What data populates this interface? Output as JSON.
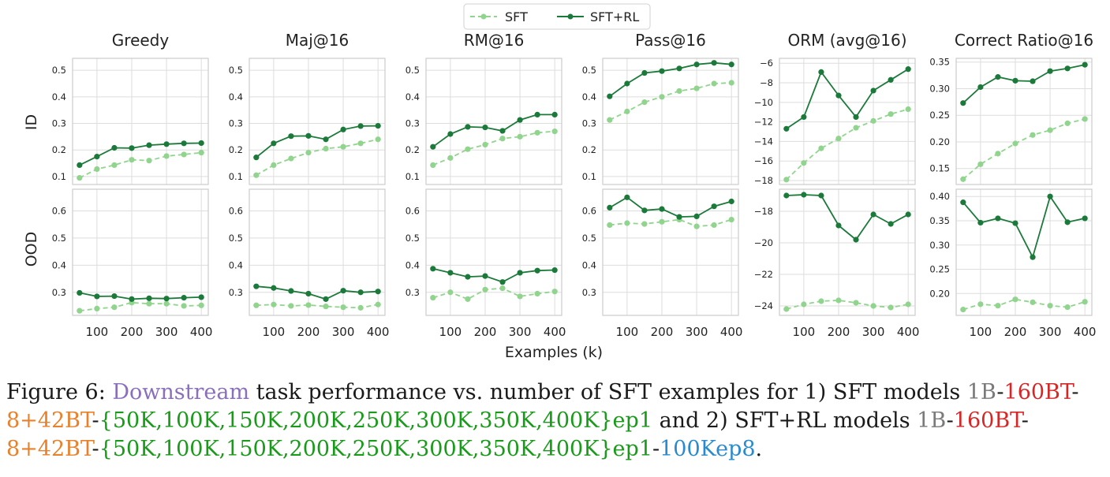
{
  "legend": {
    "sft": "SFT",
    "sftrl": "SFT+RL"
  },
  "xlabel": "Examples (k)",
  "row_labels": [
    "ID",
    "OOD"
  ],
  "colors": {
    "sft": "#90d48e",
    "sftrl": "#1b7a3a"
  },
  "chart_data": [
    {
      "type": "line",
      "title": "Greedy",
      "row": "ID",
      "x": [
        50,
        100,
        150,
        200,
        250,
        300,
        350,
        400
      ],
      "xticks": [
        100,
        200,
        300,
        400
      ],
      "xlim": [
        30,
        420
      ],
      "ylim": [
        0.07,
        0.545
      ],
      "yticks": [
        0.1,
        0.2,
        0.3,
        0.4,
        0.5
      ],
      "ytick_labels": [
        "0.1",
        "0.2",
        "0.3",
        "0.4",
        "0.5"
      ],
      "grid": true,
      "series": [
        {
          "name": "SFT",
          "values": [
            0.095,
            0.128,
            0.143,
            0.163,
            0.16,
            0.177,
            0.183,
            0.19
          ]
        },
        {
          "name": "SFT+RL",
          "values": [
            0.143,
            0.175,
            0.208,
            0.207,
            0.218,
            0.222,
            0.225,
            0.226
          ]
        }
      ]
    },
    {
      "type": "line",
      "title": "Maj@16",
      "row": "ID",
      "x": [
        50,
        100,
        150,
        200,
        250,
        300,
        350,
        400
      ],
      "xticks": [
        100,
        200,
        300,
        400
      ],
      "xlim": [
        30,
        420
      ],
      "ylim": [
        0.07,
        0.545
      ],
      "yticks": [
        0.1,
        0.2,
        0.3,
        0.4,
        0.5
      ],
      "ytick_labels": [
        "0.1",
        "0.2",
        "0.3",
        "0.4",
        "0.5"
      ],
      "grid": true,
      "series": [
        {
          "name": "SFT",
          "values": [
            0.105,
            0.143,
            0.168,
            0.19,
            0.205,
            0.212,
            0.225,
            0.24
          ]
        },
        {
          "name": "SFT+RL",
          "values": [
            0.172,
            0.225,
            0.252,
            0.253,
            0.24,
            0.277,
            0.29,
            0.291
          ]
        }
      ]
    },
    {
      "type": "line",
      "title": "RM@16",
      "row": "ID",
      "x": [
        50,
        100,
        150,
        200,
        250,
        300,
        350,
        400
      ],
      "xticks": [
        100,
        200,
        300,
        400
      ],
      "xlim": [
        30,
        420
      ],
      "ylim": [
        0.07,
        0.545
      ],
      "yticks": [
        0.1,
        0.2,
        0.3,
        0.4,
        0.5
      ],
      "ytick_labels": [
        "0.1",
        "0.2",
        "0.3",
        "0.4",
        "0.5"
      ],
      "grid": true,
      "series": [
        {
          "name": "SFT",
          "values": [
            0.143,
            0.17,
            0.203,
            0.22,
            0.243,
            0.25,
            0.265,
            0.27
          ]
        },
        {
          "name": "SFT+RL",
          "values": [
            0.212,
            0.26,
            0.287,
            0.285,
            0.272,
            0.313,
            0.333,
            0.333
          ]
        }
      ]
    },
    {
      "type": "line",
      "title": "Pass@16",
      "row": "ID",
      "x": [
        50,
        100,
        150,
        200,
        250,
        300,
        350,
        400
      ],
      "xticks": [
        100,
        200,
        300,
        400
      ],
      "xlim": [
        30,
        420
      ],
      "ylim": [
        0.07,
        0.545
      ],
      "yticks": [
        0.1,
        0.2,
        0.3,
        0.4,
        0.5
      ],
      "ytick_labels": [
        "0.1",
        "0.2",
        "0.3",
        "0.4",
        "0.5"
      ],
      "grid": true,
      "series": [
        {
          "name": "SFT",
          "values": [
            0.313,
            0.345,
            0.38,
            0.4,
            0.422,
            0.432,
            0.45,
            0.453
          ]
        },
        {
          "name": "SFT+RL",
          "values": [
            0.402,
            0.45,
            0.49,
            0.497,
            0.507,
            0.522,
            0.528,
            0.522
          ]
        }
      ]
    },
    {
      "type": "line",
      "title": "ORM (avg@16)",
      "row": "ID",
      "x": [
        50,
        100,
        150,
        200,
        250,
        300,
        350,
        400
      ],
      "xticks": [
        100,
        200,
        300,
        400
      ],
      "xlim": [
        30,
        420
      ],
      "ylim": [
        -18.4,
        -5.5
      ],
      "yticks": [
        -18,
        -16,
        -14,
        -12,
        -10,
        -8,
        -6
      ],
      "ytick_labels": [
        "−18",
        "−16",
        "−14",
        "−12",
        "−10",
        "−8",
        "−6"
      ],
      "grid": true,
      "series": [
        {
          "name": "SFT",
          "values": [
            -17.9,
            -16.2,
            -14.7,
            -13.7,
            -12.6,
            -11.9,
            -11.2,
            -10.7
          ]
        },
        {
          "name": "SFT+RL",
          "values": [
            -12.7,
            -11.5,
            -6.9,
            -9.3,
            -11.5,
            -8.8,
            -7.7,
            -6.6
          ]
        }
      ]
    },
    {
      "type": "line",
      "title": "Correct Ratio@16",
      "row": "ID",
      "x": [
        50,
        100,
        150,
        200,
        250,
        300,
        350,
        400
      ],
      "xticks": [
        100,
        200,
        300,
        400
      ],
      "xlim": [
        30,
        420
      ],
      "ylim": [
        0.12,
        0.357
      ],
      "yticks": [
        0.15,
        0.2,
        0.25,
        0.3,
        0.35
      ],
      "ytick_labels": [
        "0.15",
        "0.20",
        "0.25",
        "0.30",
        "0.35"
      ],
      "grid": true,
      "series": [
        {
          "name": "SFT",
          "values": [
            0.13,
            0.158,
            0.178,
            0.197,
            0.213,
            0.222,
            0.235,
            0.243
          ]
        },
        {
          "name": "SFT+RL",
          "values": [
            0.273,
            0.303,
            0.322,
            0.315,
            0.314,
            0.333,
            0.338,
            0.345
          ]
        }
      ]
    },
    {
      "type": "line",
      "title": "",
      "row": "OOD",
      "x": [
        50,
        100,
        150,
        200,
        250,
        300,
        350,
        400
      ],
      "xticks": [
        100,
        200,
        300,
        400
      ],
      "xtick_labels": [
        "100",
        "200",
        "300",
        "400"
      ],
      "xlim": [
        30,
        420
      ],
      "ylim": [
        0.215,
        0.68
      ],
      "yticks": [
        0.3,
        0.4,
        0.5,
        0.6
      ],
      "ytick_labels": [
        "0.3",
        "0.4",
        "0.5",
        "0.6"
      ],
      "grid": true,
      "series": [
        {
          "name": "SFT",
          "values": [
            0.232,
            0.24,
            0.245,
            0.262,
            0.258,
            0.258,
            0.25,
            0.252
          ]
        },
        {
          "name": "SFT+RL",
          "values": [
            0.298,
            0.285,
            0.286,
            0.275,
            0.278,
            0.277,
            0.28,
            0.282
          ]
        }
      ]
    },
    {
      "type": "line",
      "title": "",
      "row": "OOD",
      "x": [
        50,
        100,
        150,
        200,
        250,
        300,
        350,
        400
      ],
      "xticks": [
        100,
        200,
        300,
        400
      ],
      "xtick_labels": [
        "100",
        "200",
        "300",
        "400"
      ],
      "xlim": [
        30,
        420
      ],
      "ylim": [
        0.215,
        0.68
      ],
      "yticks": [
        0.3,
        0.4,
        0.5,
        0.6
      ],
      "ytick_labels": [
        "0.3",
        "0.4",
        "0.5",
        "0.6"
      ],
      "grid": true,
      "series": [
        {
          "name": "SFT",
          "values": [
            0.252,
            0.255,
            0.25,
            0.253,
            0.248,
            0.245,
            0.243,
            0.255
          ]
        },
        {
          "name": "SFT+RL",
          "values": [
            0.322,
            0.316,
            0.305,
            0.295,
            0.275,
            0.306,
            0.3,
            0.303
          ]
        }
      ]
    },
    {
      "type": "line",
      "title": "",
      "row": "OOD",
      "x": [
        50,
        100,
        150,
        200,
        250,
        300,
        350,
        400
      ],
      "xticks": [
        100,
        200,
        300,
        400
      ],
      "xtick_labels": [
        "100",
        "200",
        "300",
        "400"
      ],
      "xlim": [
        30,
        420
      ],
      "ylim": [
        0.215,
        0.68
      ],
      "yticks": [
        0.3,
        0.4,
        0.5,
        0.6
      ],
      "ytick_labels": [
        "0.3",
        "0.4",
        "0.5",
        "0.6"
      ],
      "grid": true,
      "series": [
        {
          "name": "SFT",
          "values": [
            0.28,
            0.3,
            0.275,
            0.31,
            0.315,
            0.285,
            0.295,
            0.303
          ]
        },
        {
          "name": "SFT+RL",
          "values": [
            0.387,
            0.372,
            0.357,
            0.36,
            0.338,
            0.372,
            0.38,
            0.382
          ]
        }
      ]
    },
    {
      "type": "line",
      "title": "",
      "row": "OOD",
      "x": [
        50,
        100,
        150,
        200,
        250,
        300,
        350,
        400
      ],
      "xticks": [
        100,
        200,
        300,
        400
      ],
      "xtick_labels": [
        "100",
        "200",
        "300",
        "400"
      ],
      "xlim": [
        30,
        420
      ],
      "ylim": [
        0.215,
        0.68
      ],
      "yticks": [
        0.3,
        0.4,
        0.5,
        0.6
      ],
      "ytick_labels": [
        "0.3",
        "0.4",
        "0.5",
        "0.6"
      ],
      "grid": true,
      "series": [
        {
          "name": "SFT",
          "values": [
            0.548,
            0.555,
            0.552,
            0.56,
            0.568,
            0.543,
            0.548,
            0.568
          ]
        },
        {
          "name": "SFT+RL",
          "values": [
            0.612,
            0.65,
            0.602,
            0.607,
            0.578,
            0.58,
            0.617,
            0.635
          ]
        }
      ]
    },
    {
      "type": "line",
      "title": "",
      "row": "OOD",
      "x": [
        50,
        100,
        150,
        200,
        250,
        300,
        350,
        400
      ],
      "xticks": [
        100,
        200,
        300,
        400
      ],
      "xtick_labels": [
        "100",
        "200",
        "300",
        "400"
      ],
      "xlim": [
        30,
        420
      ],
      "ylim": [
        -24.6,
        -16.6
      ],
      "yticks": [
        -24,
        -22,
        -20,
        -18
      ],
      "ytick_labels": [
        "−24",
        "−22",
        "−20",
        "−18"
      ],
      "grid": true,
      "series": [
        {
          "name": "SFT",
          "values": [
            -24.2,
            -23.9,
            -23.7,
            -23.65,
            -23.8,
            -24.0,
            -24.1,
            -23.9
          ]
        },
        {
          "name": "SFT+RL",
          "values": [
            -17.0,
            -16.95,
            -17.0,
            -18.9,
            -19.8,
            -18.2,
            -18.8,
            -18.2
          ]
        }
      ]
    },
    {
      "type": "line",
      "title": "",
      "row": "OOD",
      "x": [
        50,
        100,
        150,
        200,
        250,
        300,
        350,
        400
      ],
      "xticks": [
        100,
        200,
        300,
        400
      ],
      "xtick_labels": [
        "100",
        "200",
        "300",
        "400"
      ],
      "xlim": [
        30,
        420
      ],
      "ylim": [
        0.155,
        0.415
      ],
      "yticks": [
        0.2,
        0.25,
        0.3,
        0.35,
        0.4
      ],
      "ytick_labels": [
        "0.20",
        "0.25",
        "0.30",
        "0.35",
        "0.40"
      ],
      "grid": true,
      "series": [
        {
          "name": "SFT",
          "values": [
            0.167,
            0.178,
            0.175,
            0.188,
            0.182,
            0.175,
            0.172,
            0.183
          ]
        },
        {
          "name": "SFT+RL",
          "values": [
            0.388,
            0.346,
            0.355,
            0.345,
            0.275,
            0.4,
            0.347,
            0.355
          ]
        }
      ]
    }
  ],
  "caption": {
    "p1": "Figure 6: ",
    "p2": "Downstream",
    "p3": " task performance vs. number of SFT examples for 1) SFT models ",
    "p4": "1B",
    "p5": "-",
    "p6": "160BT",
    "p7": "-",
    "p8": "8+42BT",
    "p9": "-",
    "p10": "{50K,100K,150K,200K,250K,300K,350K,400K}ep1",
    "p11": " and 2) SFT+RL models ",
    "p12": "1B",
    "p13": "-",
    "p14": "160BT",
    "p15": "-",
    "p16": "8+42BT",
    "p17": "-",
    "p18": "{50K,100K,150K,200K,250K,300K,350K,400K}ep1",
    "p19": "-",
    "p20": "100Kep8",
    "p21": "."
  }
}
